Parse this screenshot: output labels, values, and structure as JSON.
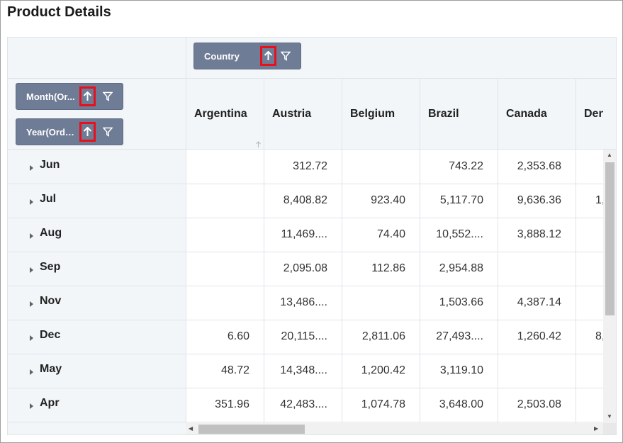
{
  "title": "Product Details",
  "column_field": {
    "label": "Country"
  },
  "row_fields": [
    {
      "label": "Month(Or..."
    },
    {
      "label": "Year(Orde..."
    }
  ],
  "columns": [
    "Argentina",
    "Austria",
    "Belgium",
    "Brazil",
    "Canada",
    "Den"
  ],
  "rows": [
    {
      "label": "Jun",
      "values": [
        "",
        "312.72",
        "",
        "743.22",
        "2,353.68",
        ""
      ]
    },
    {
      "label": "Jul",
      "values": [
        "",
        "8,408.82",
        "923.40",
        "5,117.70",
        "9,636.36",
        "1,"
      ]
    },
    {
      "label": "Aug",
      "values": [
        "",
        "11,469....",
        "74.40",
        "10,552....",
        "3,888.12",
        ""
      ]
    },
    {
      "label": "Sep",
      "values": [
        "",
        "2,095.08",
        "112.86",
        "2,954.88",
        "",
        ""
      ]
    },
    {
      "label": "Nov",
      "values": [
        "",
        "13,486....",
        "",
        "1,503.66",
        "4,387.14",
        ""
      ]
    },
    {
      "label": "Dec",
      "values": [
        "6.60",
        "20,115....",
        "2,811.06",
        "27,493....",
        "1,260.42",
        "8,"
      ]
    },
    {
      "label": "May",
      "values": [
        "48.72",
        "14,348....",
        "1,200.42",
        "3,119.10",
        "",
        ""
      ]
    },
    {
      "label": "Apr",
      "values": [
        "351.96",
        "42,483....",
        "1,074.78",
        "3,648.00",
        "2,503.08",
        ""
      ]
    }
  ],
  "colors": {
    "pill": "#6e7c96",
    "highlight": "#e8101a",
    "header_bg": "#f3f6f9"
  },
  "icons": {
    "sort": "arrow-up-icon",
    "filter": "filter-icon",
    "expand": "caret-right-icon"
  }
}
